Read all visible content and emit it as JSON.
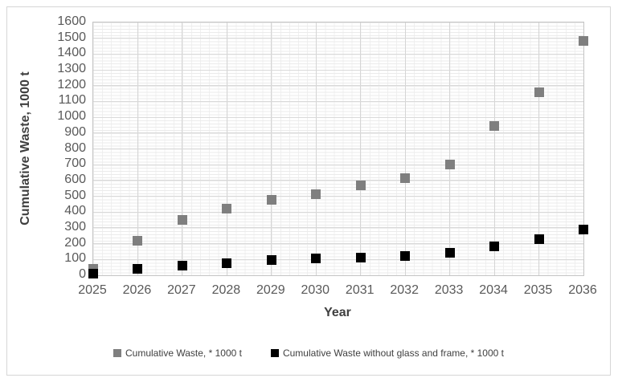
{
  "chart_data": {
    "type": "scatter",
    "title": "",
    "xlabel": "Year",
    "ylabel": "Cumulative Waste, 1000 t",
    "x": [
      2025,
      2026,
      2027,
      2028,
      2029,
      2030,
      2031,
      2032,
      2033,
      2034,
      2035,
      2036
    ],
    "series": [
      {
        "name": "Cumulative Waste, * 1000 t",
        "marker": "square",
        "color": "#7f7f7f",
        "values": [
          40,
          220,
          350,
          420,
          480,
          515,
          570,
          615,
          700,
          945,
          1160,
          1485
        ]
      },
      {
        "name": "Cumulative Waste without glass and frame, * 1000 t",
        "marker": "square",
        "color": "#000000",
        "values": [
          10,
          40,
          60,
          75,
          95,
          105,
          112,
          122,
          140,
          185,
          228,
          288
        ]
      }
    ],
    "ylim": [
      0,
      1600
    ],
    "ytick_step": 100,
    "xlim": [
      2025,
      2036
    ],
    "grid": "major and minor gridlines on",
    "legend_position": "bottom"
  }
}
